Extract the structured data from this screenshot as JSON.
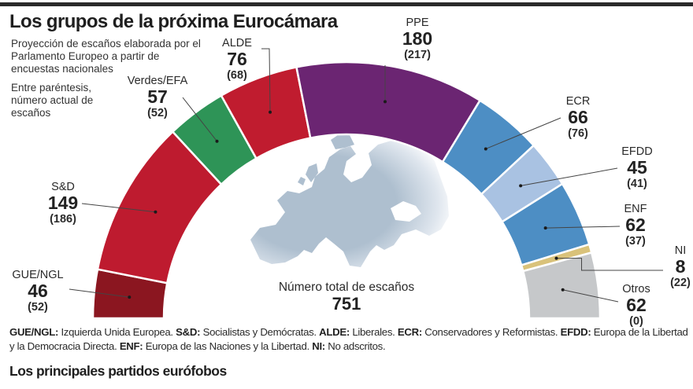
{
  "header": {
    "title": "Los grupos de la próxima Eurocámara",
    "intro": "Proyección de escaños elaborada por el Parlamento Europeo a partir de encuestas nacionales",
    "note": "Entre paréntesis, número actual de escaños"
  },
  "chart_data": {
    "type": "pie",
    "subtype": "parliament-half-donut",
    "title": "Los grupos de la próxima Eurocámara",
    "total_label": "Número total de escaños",
    "total": 751,
    "series": [
      {
        "name": "GUE/NGL",
        "value": 46,
        "current": 52,
        "color": "#8b1620"
      },
      {
        "name": "S&D",
        "value": 149,
        "current": 186,
        "color": "#be1b2f"
      },
      {
        "name": "Verdes/EFA",
        "value": 57,
        "current": 52,
        "color": "#2e9457"
      },
      {
        "name": "ALDE",
        "value": 76,
        "current": 68,
        "color": "#c01c2f"
      },
      {
        "name": "PPE",
        "value": 180,
        "current": 217,
        "color": "#6b2572"
      },
      {
        "name": "ECR",
        "value": 66,
        "current": 76,
        "color": "#4d8ec4"
      },
      {
        "name": "EFDD",
        "value": 45,
        "current": 41,
        "color": "#a9c2e2"
      },
      {
        "name": "ENF",
        "value": 62,
        "current": 37,
        "color": "#4d8ec4"
      },
      {
        "name": "NI",
        "value": 8,
        "current": 22,
        "color": "#d9c27a"
      },
      {
        "name": "Otros",
        "value": 62,
        "current": 0,
        "color": "#c6c8ca"
      }
    ]
  },
  "labels": {
    "GUE": {
      "name": "GUE/NGL",
      "value": "46",
      "prev": "(52)"
    },
    "SD": {
      "name": "S&D",
      "value": "149",
      "prev": "(186)"
    },
    "VERDES": {
      "name": "Verdes/EFA",
      "value": "57",
      "prev": "(52)"
    },
    "ALDE": {
      "name": "ALDE",
      "value": "76",
      "prev": "(68)"
    },
    "PPE": {
      "name": "PPE",
      "value": "180",
      "prev": "(217)"
    },
    "ECR": {
      "name": "ECR",
      "value": "66",
      "prev": "(76)"
    },
    "EFDD": {
      "name": "EFDD",
      "value": "45",
      "prev": "(41)"
    },
    "ENF": {
      "name": "ENF",
      "value": "62",
      "prev": "(37)"
    },
    "NI": {
      "name": "NI",
      "value": "8",
      "prev": "(22)"
    },
    "OTROS": {
      "name": "Otros",
      "value": "62",
      "prev": "(0)"
    }
  },
  "total": {
    "label": "Número total de escaños",
    "value": "751"
  },
  "notes": [
    {
      "abbr": "GUE/NGL:",
      "text": " Izquierda Unida Europea. "
    },
    {
      "abbr": "S&D:",
      "text": " Socialistas y Demócratas. "
    },
    {
      "abbr": "ALDE:",
      "text": " Liberales. "
    },
    {
      "abbr": "ECR:",
      "text": " Conservadores y Reformistas. "
    },
    {
      "abbr": "EFDD:",
      "text": " Europa de la Libertad y la Democracia Directa. "
    },
    {
      "abbr": "ENF:",
      "text": " Europa de las Naciones y la Libertad. "
    },
    {
      "abbr": "NI:",
      "text": " No adscritos."
    }
  ],
  "subtitle": "Los principales partidos eurófobos",
  "map_icon": "europe-map"
}
